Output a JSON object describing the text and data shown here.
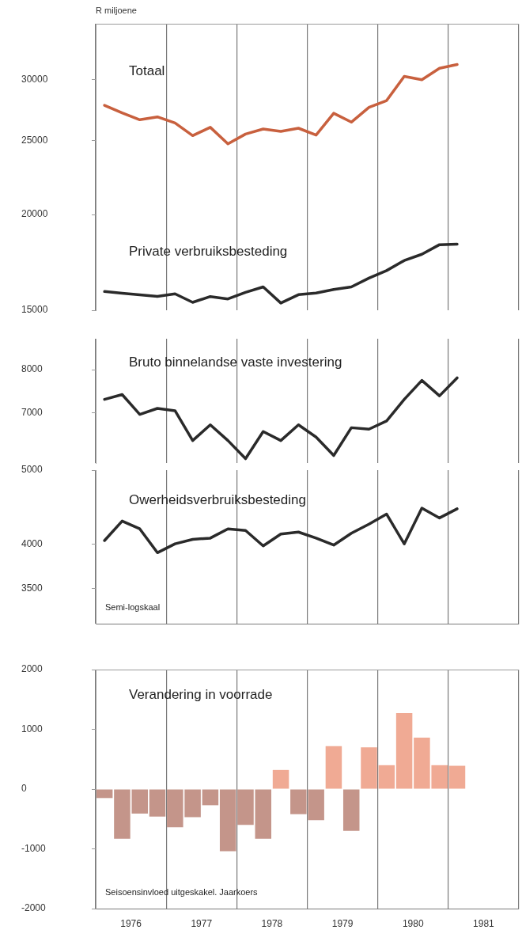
{
  "chart_data": [
    {
      "type": "line",
      "ylabel": "R miljoene",
      "x": [
        1976.125,
        1976.375,
        1976.625,
        1976.875,
        1977.125,
        1977.375,
        1977.625,
        1977.875,
        1978.125,
        1978.375,
        1978.625,
        1978.875,
        1979.125,
        1979.375,
        1979.625,
        1979.875,
        1980.125,
        1980.375,
        1980.625,
        1980.875,
        1981.125
      ],
      "xlim": [
        1976,
        1982
      ],
      "xticks": [
        {
          "value": 1976,
          "label": null
        },
        {
          "value": 1977,
          "label": null
        },
        {
          "value": 1978,
          "label": null
        },
        {
          "value": 1979,
          "label": null
        },
        {
          "value": 1980,
          "label": null
        },
        {
          "value": 1981,
          "label": null
        },
        {
          "value": 1982,
          "label": null
        }
      ],
      "ylim": [
        15000,
        35500
      ],
      "yticks": [
        15000,
        20000,
        25000,
        30000
      ],
      "log": true,
      "grid": "x",
      "tick_labels": "y",
      "legend": false,
      "marker": "none",
      "series": [
        {
          "name": "Totaal",
          "color": "#c8603e",
          "values": [
            27780,
            27150,
            26600,
            26830,
            26340,
            25360,
            26000,
            24740,
            25480,
            25870,
            25690,
            25930,
            25400,
            27120,
            26410,
            27610,
            28180,
            30310,
            30000,
            31050,
            31400
          ]
        },
        {
          "name": "Private verbruiksbesteding",
          "color": "#2a2a2a",
          "values": [
            15870,
            15790,
            15710,
            15640,
            15760,
            15360,
            15630,
            15520,
            15830,
            16090,
            15330,
            15720,
            15800,
            15970,
            16090,
            16520,
            16900,
            17420,
            17750,
            18270,
            18300
          ]
        }
      ]
    },
    {
      "type": "line",
      "x": [
        1976.125,
        1976.375,
        1976.625,
        1976.875,
        1977.125,
        1977.375,
        1977.625,
        1977.875,
        1978.125,
        1978.375,
        1978.625,
        1978.875,
        1979.125,
        1979.375,
        1979.625,
        1979.875,
        1980.125,
        1980.375,
        1980.625,
        1980.875,
        1981.125
      ],
      "xlim": [
        1976,
        1982
      ],
      "xticks": [
        {
          "value": 1976,
          "label": null
        },
        {
          "value": 1977,
          "label": null
        },
        {
          "value": 1978,
          "label": null
        },
        {
          "value": 1979,
          "label": null
        },
        {
          "value": 1980,
          "label": null
        },
        {
          "value": 1981,
          "label": null
        },
        {
          "value": 1982,
          "label": null
        }
      ],
      "ylim": [
        6000,
        8800
      ],
      "yticks": [
        7000,
        8000
      ],
      "log": true,
      "grid": "x",
      "tick_labels": "y",
      "legend": false,
      "marker": "none",
      "series": [
        {
          "name": "Bruto binnelandse vaste investering",
          "color": "#2a2a2a",
          "values": [
            7300,
            7410,
            6970,
            7100,
            7050,
            6430,
            6750,
            6430,
            6080,
            6610,
            6430,
            6750,
            6500,
            6140,
            6690,
            6660,
            6830,
            7300,
            7740,
            7380,
            7800
          ]
        }
      ]
    },
    {
      "type": "line",
      "annotations": [
        "Semi-logskaal"
      ],
      "x": [
        1976.125,
        1976.375,
        1976.625,
        1976.875,
        1977.125,
        1977.375,
        1977.625,
        1977.875,
        1978.125,
        1978.375,
        1978.625,
        1978.875,
        1979.125,
        1979.375,
        1979.625,
        1979.875,
        1980.125,
        1980.375,
        1980.625,
        1980.875,
        1981.125
      ],
      "xlim": [
        1976,
        1982
      ],
      "xticks": [
        {
          "value": 1976,
          "label": null
        },
        {
          "value": 1977,
          "label": null
        },
        {
          "value": 1978,
          "label": null
        },
        {
          "value": 1979,
          "label": null
        },
        {
          "value": 1980,
          "label": null
        },
        {
          "value": 1981,
          "label": null
        },
        {
          "value": 1982,
          "label": null
        }
      ],
      "ylim": [
        3150,
        5000
      ],
      "yticks": [
        3500,
        4000,
        5000
      ],
      "log": true,
      "grid": "x",
      "tick_labels": "y",
      "legend": false,
      "marker": "none",
      "series": [
        {
          "name": "Owerheidsverbruiksbesteding",
          "color": "#2a2a2a",
          "values": [
            4045,
            4290,
            4190,
            3900,
            4005,
            4060,
            4075,
            4190,
            4170,
            3980,
            4125,
            4150,
            4075,
            3990,
            4135,
            4250,
            4380,
            4005,
            4460,
            4330,
            4450
          ]
        }
      ]
    },
    {
      "type": "bar",
      "annotations": [
        "Seisoensinvloed uitgeskakel. Jaarkoers"
      ],
      "x": [
        1976.125,
        1976.375,
        1976.625,
        1976.875,
        1977.125,
        1977.375,
        1977.625,
        1977.875,
        1978.125,
        1978.375,
        1978.625,
        1978.875,
        1979.125,
        1979.375,
        1979.625,
        1979.875,
        1980.125,
        1980.375,
        1980.625,
        1980.875,
        1981.125
      ],
      "xlim": [
        1976,
        1982
      ],
      "xticks": [
        {
          "value": 1976,
          "label": null
        },
        {
          "value": 1976.5,
          "label": "1976"
        },
        {
          "value": 1977,
          "label": null
        },
        {
          "value": 1977.5,
          "label": "1977"
        },
        {
          "value": 1978,
          "label": null
        },
        {
          "value": 1978.5,
          "label": "1978"
        },
        {
          "value": 1979,
          "label": null
        },
        {
          "value": 1979.5,
          "label": "1979"
        },
        {
          "value": 1980,
          "label": null
        },
        {
          "value": 1980.5,
          "label": "1980"
        },
        {
          "value": 1981,
          "label": null
        },
        {
          "value": 1981.5,
          "label": "1981"
        },
        {
          "value": 1982,
          "label": null
        }
      ],
      "ylim": [
        -2000,
        2000
      ],
      "yticks": [
        -2000,
        -1000,
        0,
        1000,
        2000
      ],
      "grid": "x",
      "legend": false,
      "series": [
        {
          "name": "Verandering in voorrade",
          "colors": [
            "#c4958a",
            "#c4958a",
            "#c4958a",
            "#c4958a",
            "#c4958a",
            "#c4958a",
            "#c4958a",
            "#c4958a",
            "#c4958a",
            "#c4958a",
            "#f0aa94",
            "#c4958a",
            "#c4958a",
            "#f0aa94",
            "#c4958a",
            "#f0aa94",
            "#f0aa94",
            "#f0aa94",
            "#f0aa94",
            "#f0aa94",
            "#f0aa94"
          ],
          "values": [
            -150,
            -830,
            -410,
            -460,
            -640,
            -470,
            -270,
            -1040,
            -600,
            -830,
            320,
            -420,
            -520,
            720,
            -700,
            700,
            400,
            1270,
            860,
            400,
            390
          ]
        }
      ]
    }
  ]
}
